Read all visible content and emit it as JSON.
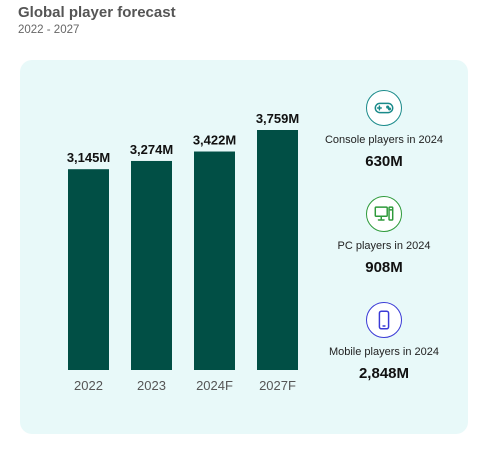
{
  "header": {
    "title": "Global player forecast",
    "subtitle": "2022 - 2027"
  },
  "chart_data": {
    "type": "bar",
    "categories": [
      "2022",
      "2023",
      "2024F",
      "2027F"
    ],
    "values": [
      3145,
      3274,
      3422,
      3759
    ],
    "data_labels": [
      "3,145M",
      "3,274M",
      "3,422M",
      "3,759M"
    ],
    "ylim": [
      0,
      3759
    ],
    "grid": false,
    "bar_color": "#014f45"
  },
  "stats": [
    {
      "icon": "gamepad-icon",
      "label": "Console players in 2024",
      "value": "630M",
      "color": "#1a8a8a"
    },
    {
      "icon": "desktop-pc-icon",
      "label": "PC players in 2024",
      "value": "908M",
      "color": "#2e9a3a"
    },
    {
      "icon": "smartphone-icon",
      "label": "Mobile players in 2024",
      "value": "2,848M",
      "color": "#3a3ad6"
    }
  ]
}
